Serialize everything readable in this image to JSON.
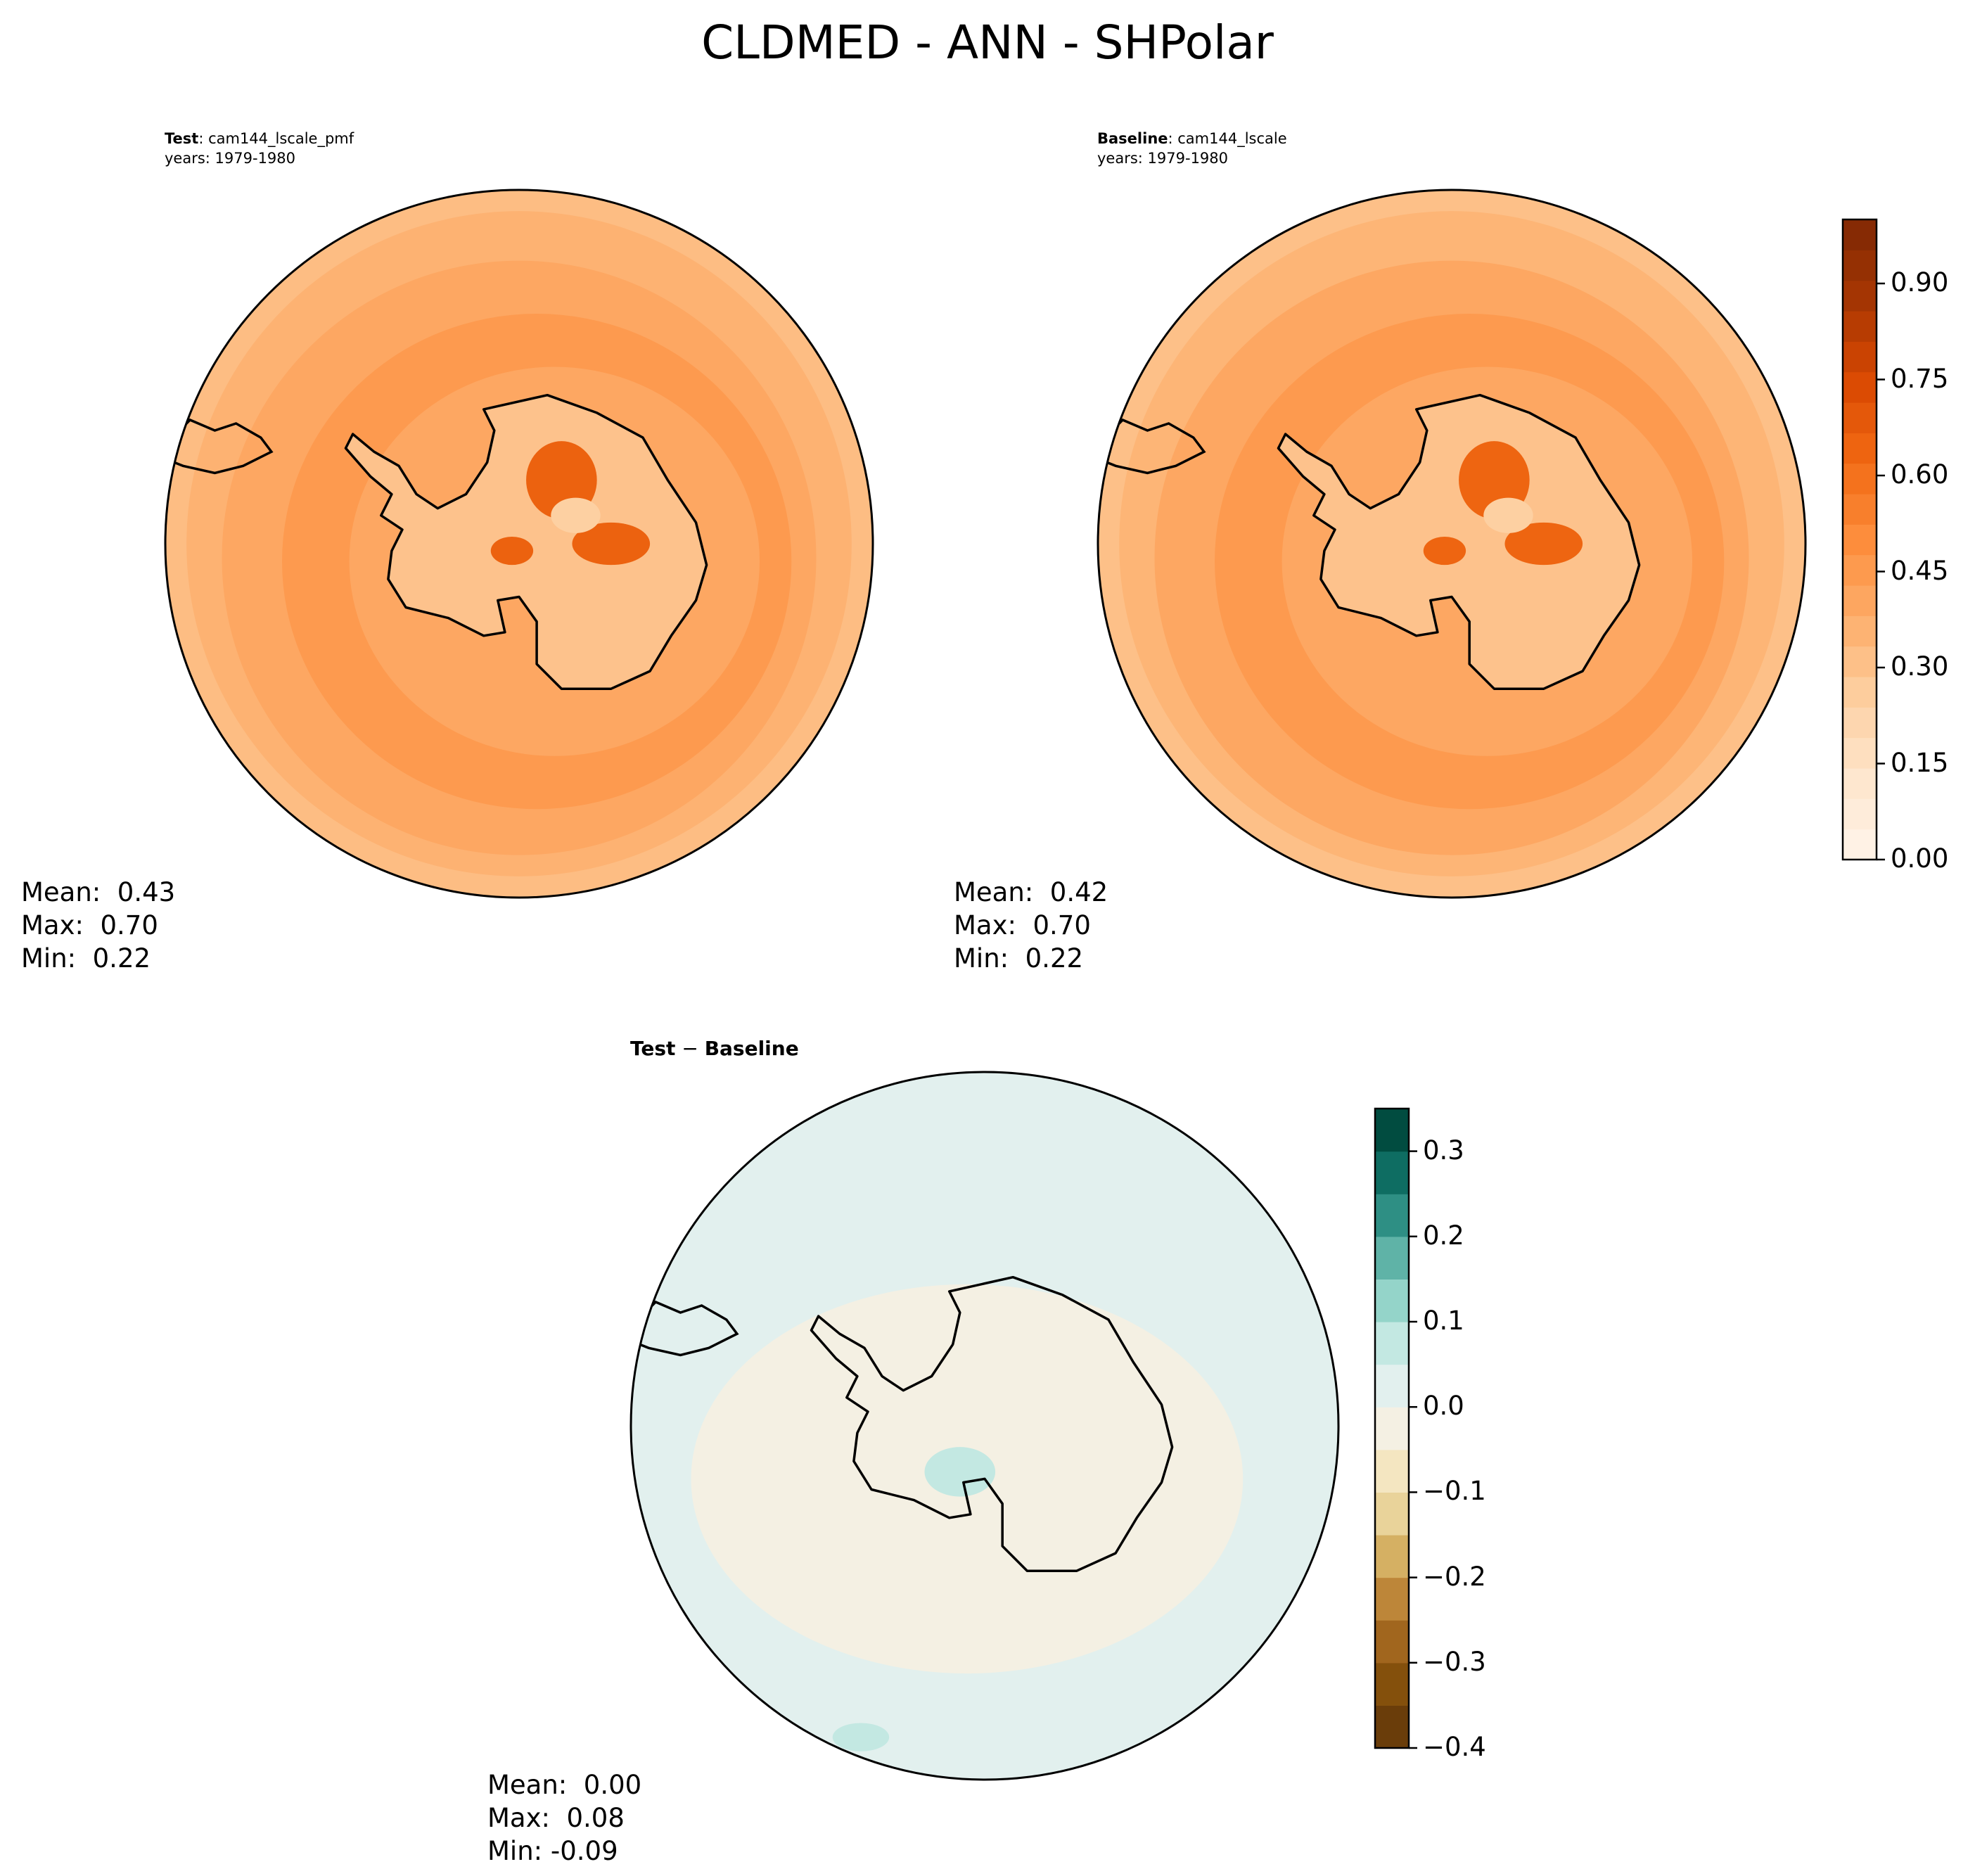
{
  "figure": {
    "title": "CLDMED - ANN - SHPolar"
  },
  "chart_data": [
    {
      "type": "heatmap",
      "projection": "south-polar-stereographic",
      "label_bold": "Test",
      "label_rest": ": cam144_lscale_pmf",
      "years": "years: 1979-1980",
      "stats": {
        "mean": "Mean:  0.43",
        "max": "Max:  0.70",
        "min": "Min:  0.22"
      },
      "colormap": "Oranges",
      "field": {
        "ocean": 0.42,
        "mid_ring": 0.44,
        "outer_rim": 0.32,
        "continent_interior": 0.3,
        "maxima": 0.65
      },
      "colorbar": {
        "shared_with": "Baseline"
      }
    },
    {
      "type": "heatmap",
      "projection": "south-polar-stereographic",
      "label_bold": "Baseline",
      "label_rest": ": cam144_lscale",
      "years": "years: 1979-1980",
      "stats": {
        "mean": "Mean:  0.42",
        "max": "Max:  0.70",
        "min": "Min:  0.22"
      },
      "colormap": "Oranges",
      "field": {
        "ocean": 0.41,
        "mid_ring": 0.43,
        "outer_rim": 0.31,
        "continent_interior": 0.3,
        "maxima": 0.64
      },
      "colorbar": {
        "range": [
          0.0,
          1.0
        ],
        "levels": 21,
        "ticks": [
          "0.00",
          "0.15",
          "0.30",
          "0.45",
          "0.60",
          "0.75",
          "0.90"
        ],
        "tick_values": [
          0.0,
          0.15,
          0.3,
          0.45,
          0.6,
          0.75,
          0.9
        ]
      }
    },
    {
      "type": "heatmap",
      "projection": "south-polar-stereographic",
      "label_bold": "Test",
      "label_mid": " − ",
      "label_bold2": "Baseline",
      "stats": {
        "mean": "Mean:  0.00",
        "max": "Max:  0.08",
        "min": "Min: -0.09"
      },
      "colormap": "BrBG",
      "field": {
        "background": 0.0,
        "positive_patches": 0.05,
        "negative_patches": -0.04
      },
      "colorbar": {
        "range": [
          -0.4,
          0.35
        ],
        "ticks": [
          "0.3",
          "0.2",
          "0.1",
          "0.0",
          "−0.1",
          "−0.2",
          "−0.3",
          "−0.4"
        ],
        "tick_values": [
          0.3,
          0.2,
          0.1,
          0.0,
          -0.1,
          -0.2,
          -0.3,
          -0.4
        ],
        "colors": [
          "#6a3d0a",
          "#84500c",
          "#a1661e",
          "#bd8639",
          "#d5b063",
          "#e9d39a",
          "#f4e6c1",
          "#f4f0e3",
          "#e2f0ee",
          "#c3e8e2",
          "#94d4c9",
          "#5fb3a7",
          "#2e8f84",
          "#0e6d62",
          "#014c40"
        ]
      }
    }
  ],
  "colors": {
    "oranges": [
      "#fff5eb",
      "#fee6ce",
      "#fdd0a2",
      "#fdae6b",
      "#fd8d3c",
      "#f16913",
      "#d94801",
      "#a63603",
      "#7f2704"
    ]
  }
}
